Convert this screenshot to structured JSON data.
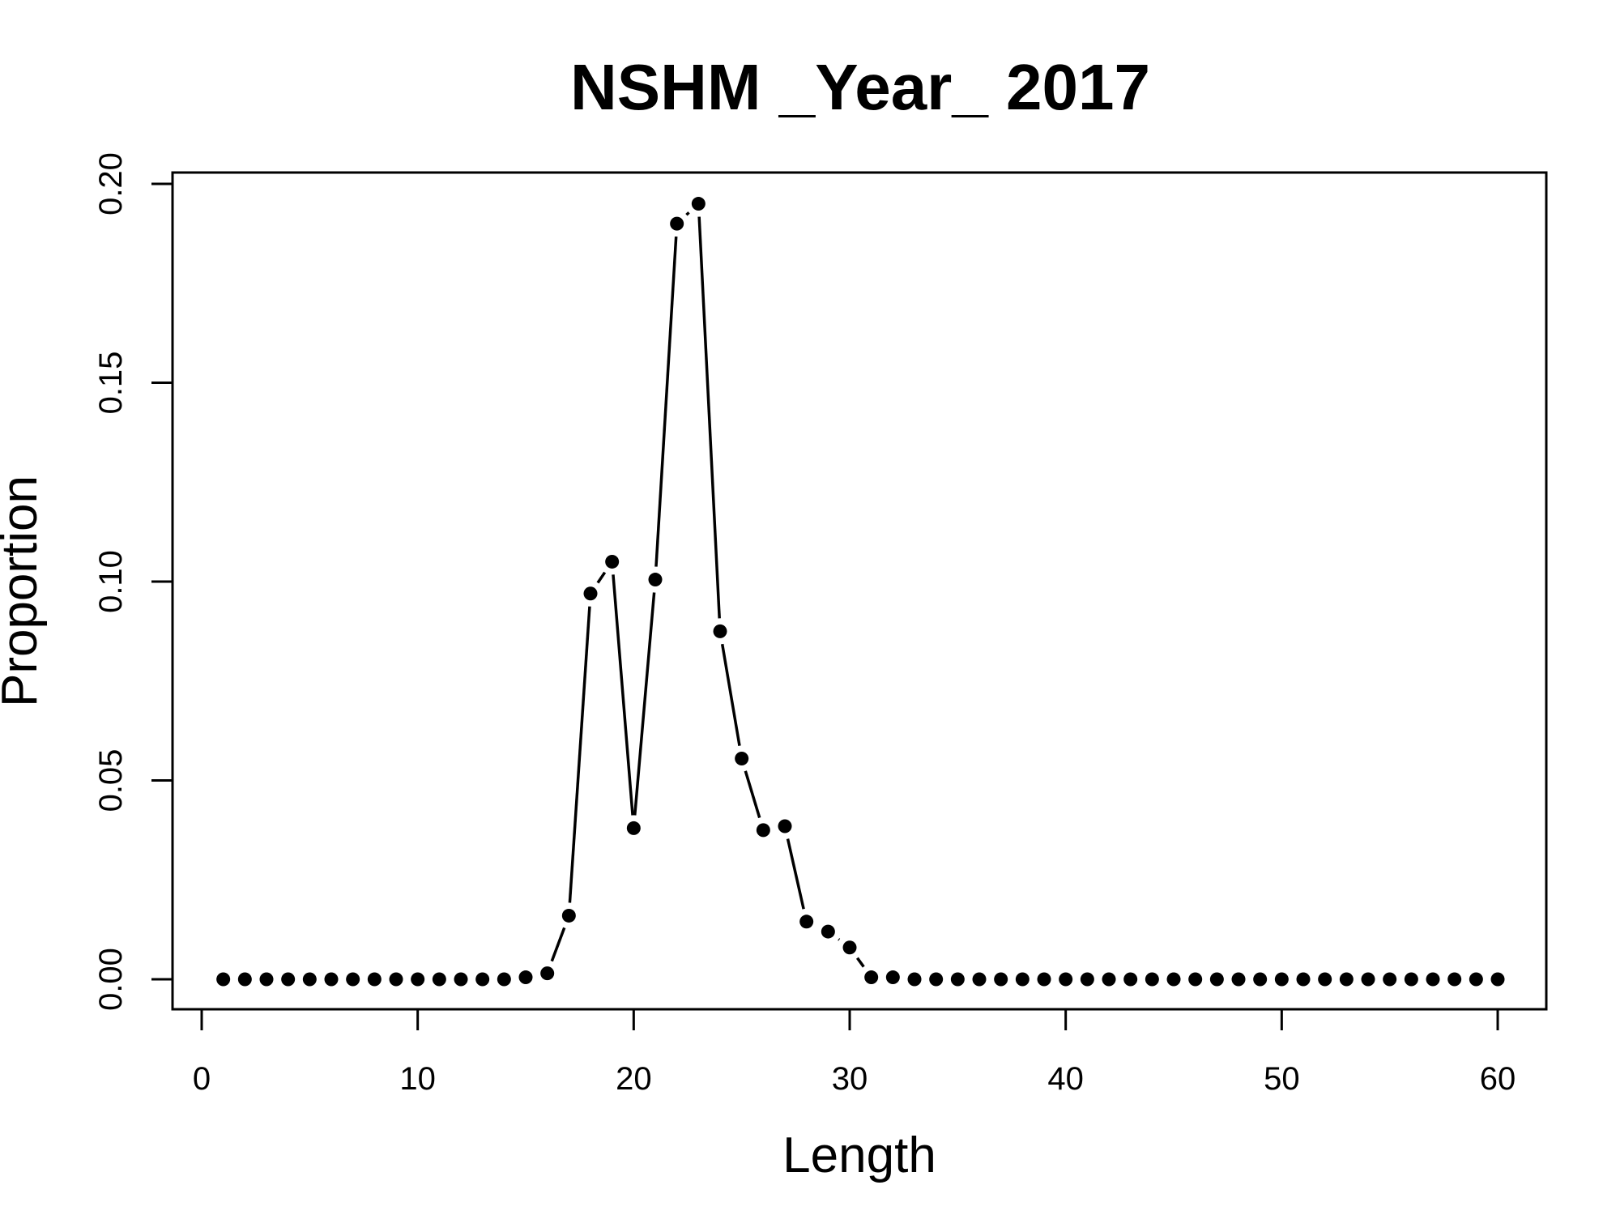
{
  "chart_data": {
    "type": "line",
    "title": "NSHM _Year_ 2017",
    "xlabel": "Length",
    "ylabel": "Proportion",
    "xlim": [
      0,
      60
    ],
    "ylim": [
      0,
      0.2
    ],
    "xticks": [
      0,
      10,
      20,
      30,
      40,
      50,
      60
    ],
    "xtick_labels": [
      "0",
      "10",
      "20",
      "30",
      "40",
      "50",
      "60"
    ],
    "yticks": [
      0,
      0.05,
      0.1,
      0.15,
      0.2
    ],
    "ytick_labels": [
      "0.00",
      "0.05",
      "0.10",
      "0.15",
      "0.20"
    ],
    "grid": false,
    "series": [
      {
        "x": [
          1,
          2,
          3,
          4,
          5,
          6,
          7,
          8,
          9,
          10,
          11,
          12,
          13,
          14,
          15,
          16,
          17,
          18,
          19,
          20,
          21,
          22,
          23,
          24,
          25,
          26,
          27,
          28,
          29,
          30,
          31,
          32,
          33,
          34,
          35,
          36,
          37,
          38,
          39,
          40,
          41,
          42,
          43,
          44,
          45,
          46,
          47,
          48,
          49,
          50,
          51,
          52,
          53,
          54,
          55,
          56,
          57,
          58,
          59,
          60
        ],
        "values": [
          0,
          0,
          0,
          0,
          0,
          0,
          0,
          0,
          0,
          0,
          0,
          0,
          0,
          0,
          0.0005,
          0.0015,
          0.016,
          0.097,
          0.105,
          0.038,
          0.1005,
          0.19,
          0.195,
          0.0875,
          0.0555,
          0.0375,
          0.0385,
          0.0145,
          0.012,
          0.008,
          0.0005,
          0.0005,
          0,
          0,
          0,
          0,
          0,
          0,
          0,
          0,
          0,
          0,
          0,
          0,
          0,
          0,
          0,
          0,
          0,
          0,
          0,
          0,
          0,
          0,
          0,
          0,
          0,
          0,
          0,
          0
        ]
      }
    ]
  }
}
